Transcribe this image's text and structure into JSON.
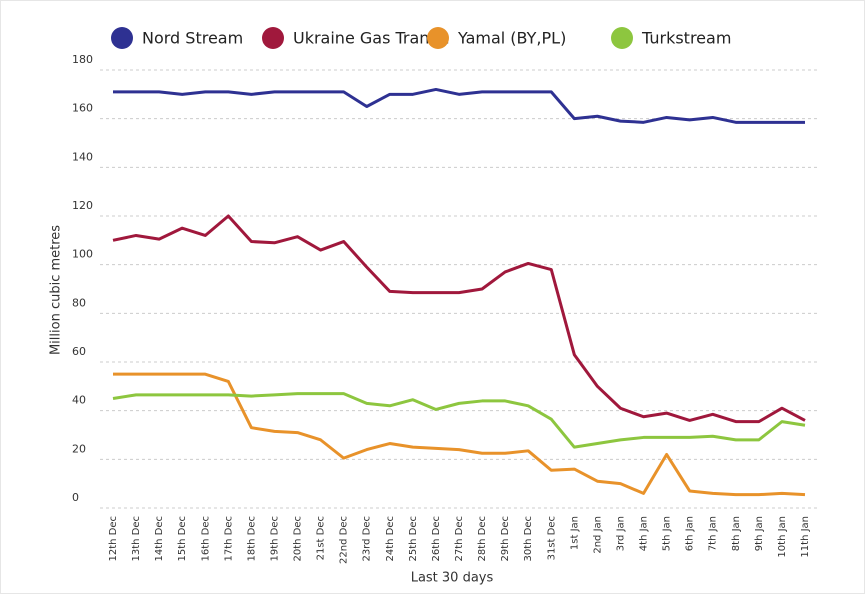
{
  "chart_data": {
    "type": "line",
    "categories": [
      "12th Dec",
      "13th Dec",
      "14th Dec",
      "15th Dec",
      "16th Dec",
      "17th Dec",
      "18th Dec",
      "19th Dec",
      "20th Dec",
      "21st Dec",
      "22nd Dec",
      "23rd Dec",
      "24th Dec",
      "25th Dec",
      "26th Dec",
      "27th Dec",
      "28th Dec",
      "29th Dec",
      "30th Dec",
      "31st Dec",
      "1st Jan",
      "2nd Jan",
      "3rd Jan",
      "4th Jan",
      "5th Jan",
      "6th Jan",
      "7th Jan",
      "8th Jan",
      "9th Jan",
      "10th Jan",
      "11th Jan"
    ],
    "series": [
      {
        "name": "Nord Stream",
        "color": "#2e3192",
        "values": [
          171,
          171,
          171,
          170,
          171,
          171,
          170,
          171,
          171,
          171,
          171,
          165,
          170,
          170,
          172,
          170,
          171,
          171,
          171,
          171,
          160,
          161,
          159,
          158.5,
          160.5,
          159.5,
          160.5,
          158.5,
          158.5,
          158.5,
          158.5
        ]
      },
      {
        "name": "Ukraine Gas Transit",
        "color": "#a0183c",
        "values": [
          110,
          112,
          110.5,
          115,
          112,
          120,
          109.5,
          109,
          111.5,
          106,
          109.5,
          99,
          89,
          88.5,
          88.5,
          88.5,
          90,
          97,
          100.5,
          98,
          63,
          50,
          41,
          37.5,
          39,
          36,
          38.5,
          35.5,
          35.5,
          41,
          36
        ]
      },
      {
        "name": "Yamal (BY,PL)",
        "color": "#e8922a",
        "values": [
          55,
          55,
          55,
          55,
          55,
          52,
          33,
          31.5,
          31,
          28,
          20.5,
          24,
          26.5,
          25,
          24.5,
          24,
          22.5,
          22.5,
          23.5,
          15.5,
          16,
          11,
          10,
          6,
          22,
          7,
          6,
          5.5,
          5.5,
          6,
          5.5
        ]
      },
      {
        "name": "Turkstream",
        "color": "#8dc63f",
        "values": [
          45,
          46.5,
          46.5,
          46.5,
          46.5,
          46.5,
          46,
          46.5,
          47,
          47,
          47,
          43,
          42,
          44.5,
          40.5,
          43,
          44,
          44,
          42,
          36.5,
          25,
          26.5,
          28,
          29,
          29,
          29,
          29.5,
          28,
          28,
          35.5,
          34
        ]
      }
    ],
    "x_label": "Last 30 days",
    "y_label": "Million cubic metres",
    "ylim": [
      0,
      180
    ],
    "yticks": [
      0,
      20,
      40,
      60,
      80,
      100,
      120,
      140,
      160,
      180
    ],
    "grid": true,
    "legend": "top"
  }
}
